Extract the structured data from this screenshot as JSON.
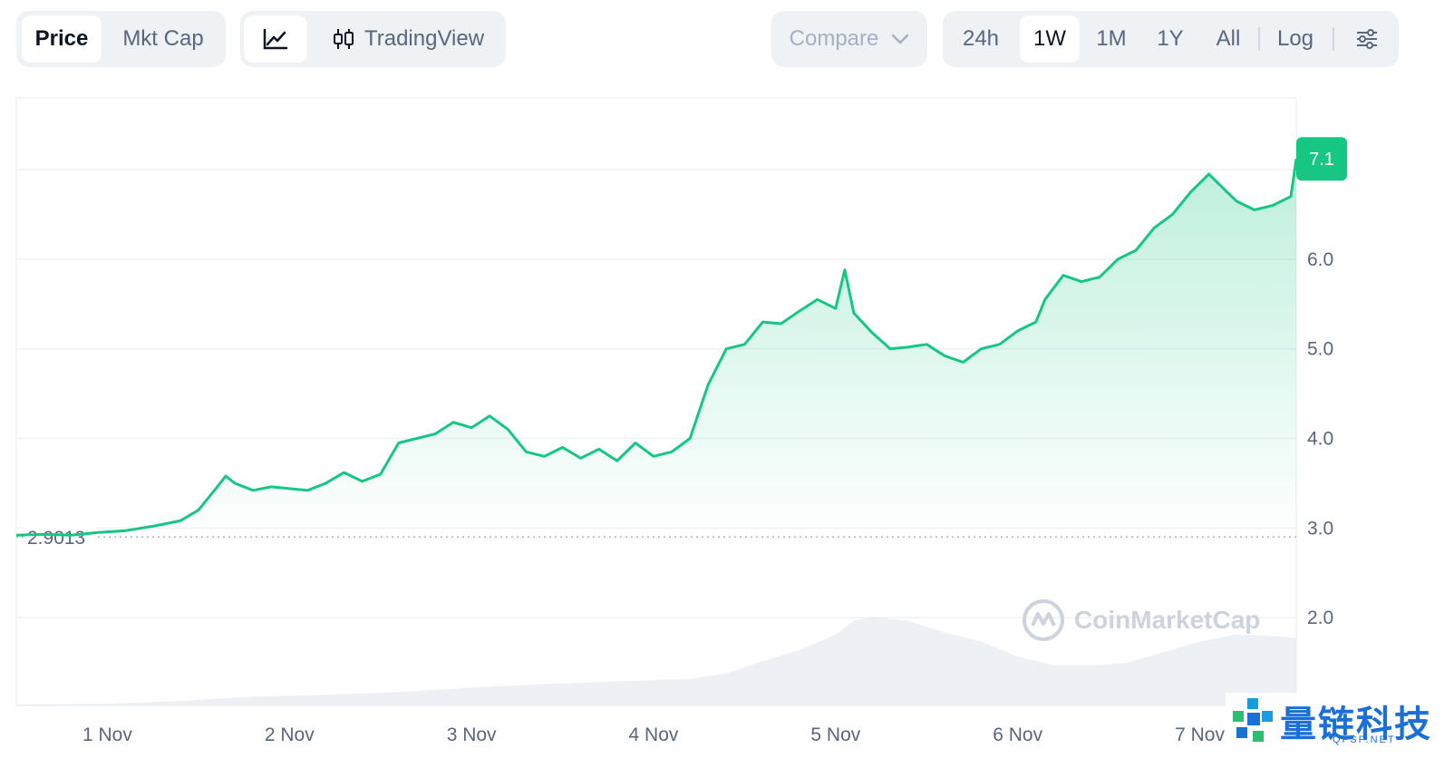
{
  "toolbar": {
    "price_label": "Price",
    "mktcap_label": "Mkt Cap",
    "tradingview_label": "TradingView",
    "compare_label": "Compare",
    "ranges": [
      "24h",
      "1W",
      "1M",
      "1Y",
      "All"
    ],
    "active_range": "1W",
    "log_label": "Log"
  },
  "watermark": {
    "text": "CoinMarketCap"
  },
  "corner_logo": {
    "text": "量链科技",
    "sub": "QFSP.NET"
  },
  "chart_data": {
    "type": "area",
    "title": "",
    "xlabel": "",
    "ylabel": "",
    "y_ticks": [
      "6.0",
      "5.0",
      "4.0",
      "3.0",
      "2.0"
    ],
    "y_tick_values": [
      6,
      5,
      4,
      3,
      2
    ],
    "x_ticks": [
      "1 Nov",
      "2 Nov",
      "3 Nov",
      "4 Nov",
      "5 Nov",
      "6 Nov",
      "7 Nov"
    ],
    "x_range": [
      0.5,
      7.53
    ],
    "ylim": [
      1.02,
      7.8
    ],
    "current_price_label": "7.1",
    "current_price": 7.12,
    "base_price_label": "2.9013",
    "base_price": 2.9013,
    "line_color": "#16c784",
    "price_series": [
      [
        0.5,
        2.92
      ],
      [
        0.65,
        2.93
      ],
      [
        0.8,
        2.92
      ],
      [
        0.95,
        2.95
      ],
      [
        1.1,
        2.97
      ],
      [
        1.25,
        3.02
      ],
      [
        1.4,
        3.08
      ],
      [
        1.5,
        3.2
      ],
      [
        1.6,
        3.45
      ],
      [
        1.65,
        3.58
      ],
      [
        1.7,
        3.5
      ],
      [
        1.8,
        3.42
      ],
      [
        1.9,
        3.46
      ],
      [
        2.0,
        3.44
      ],
      [
        2.1,
        3.42
      ],
      [
        2.2,
        3.5
      ],
      [
        2.3,
        3.62
      ],
      [
        2.4,
        3.52
      ],
      [
        2.5,
        3.6
      ],
      [
        2.6,
        3.95
      ],
      [
        2.7,
        4.0
      ],
      [
        2.8,
        4.05
      ],
      [
        2.9,
        4.18
      ],
      [
        3.0,
        4.12
      ],
      [
        3.1,
        4.25
      ],
      [
        3.2,
        4.1
      ],
      [
        3.3,
        3.85
      ],
      [
        3.4,
        3.8
      ],
      [
        3.5,
        3.9
      ],
      [
        3.6,
        3.78
      ],
      [
        3.7,
        3.88
      ],
      [
        3.8,
        3.75
      ],
      [
        3.9,
        3.95
      ],
      [
        4.0,
        3.8
      ],
      [
        4.1,
        3.85
      ],
      [
        4.2,
        4.0
      ],
      [
        4.3,
        4.6
      ],
      [
        4.4,
        5.0
      ],
      [
        4.5,
        5.05
      ],
      [
        4.6,
        5.3
      ],
      [
        4.7,
        5.28
      ],
      [
        4.8,
        5.42
      ],
      [
        4.9,
        5.55
      ],
      [
        5.0,
        5.45
      ],
      [
        5.05,
        5.88
      ],
      [
        5.1,
        5.4
      ],
      [
        5.2,
        5.18
      ],
      [
        5.3,
        5.0
      ],
      [
        5.4,
        5.02
      ],
      [
        5.5,
        5.05
      ],
      [
        5.6,
        4.92
      ],
      [
        5.7,
        4.85
      ],
      [
        5.8,
        5.0
      ],
      [
        5.9,
        5.05
      ],
      [
        6.0,
        5.2
      ],
      [
        6.1,
        5.3
      ],
      [
        6.15,
        5.55
      ],
      [
        6.25,
        5.82
      ],
      [
        6.35,
        5.75
      ],
      [
        6.45,
        5.8
      ],
      [
        6.55,
        6.0
      ],
      [
        6.65,
        6.1
      ],
      [
        6.75,
        6.35
      ],
      [
        6.85,
        6.5
      ],
      [
        6.95,
        6.75
      ],
      [
        7.05,
        6.95
      ],
      [
        7.1,
        6.85
      ],
      [
        7.2,
        6.65
      ],
      [
        7.3,
        6.55
      ],
      [
        7.4,
        6.6
      ],
      [
        7.5,
        6.7
      ],
      [
        7.53,
        7.12
      ]
    ],
    "volume_series": [
      [
        0.5,
        0.01
      ],
      [
        1.0,
        0.02
      ],
      [
        1.4,
        0.05
      ],
      [
        1.8,
        0.1
      ],
      [
        2.2,
        0.12
      ],
      [
        2.6,
        0.15
      ],
      [
        3.0,
        0.2
      ],
      [
        3.4,
        0.24
      ],
      [
        3.8,
        0.27
      ],
      [
        4.2,
        0.3
      ],
      [
        4.4,
        0.36
      ],
      [
        4.6,
        0.5
      ],
      [
        4.8,
        0.62
      ],
      [
        5.0,
        0.8
      ],
      [
        5.1,
        0.95
      ],
      [
        5.2,
        1.0
      ],
      [
        5.4,
        0.95
      ],
      [
        5.6,
        0.82
      ],
      [
        5.8,
        0.72
      ],
      [
        6.0,
        0.55
      ],
      [
        6.2,
        0.45
      ],
      [
        6.4,
        0.45
      ],
      [
        6.6,
        0.48
      ],
      [
        6.8,
        0.6
      ],
      [
        7.0,
        0.72
      ],
      [
        7.2,
        0.8
      ],
      [
        7.4,
        0.78
      ],
      [
        7.53,
        0.76
      ]
    ]
  }
}
